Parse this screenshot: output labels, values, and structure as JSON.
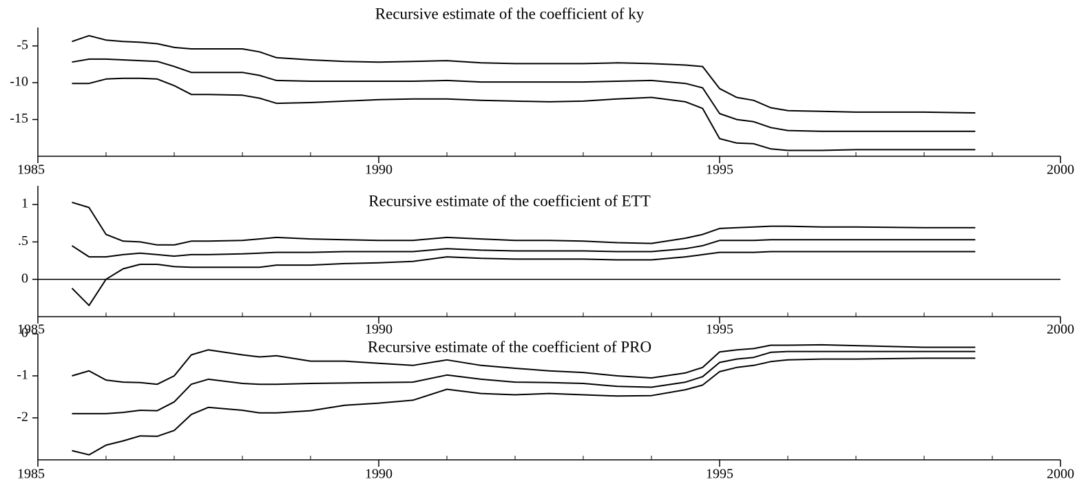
{
  "chart_data": [
    {
      "type": "line",
      "title": "Recursive estimate of the coefficient of ky",
      "x": [
        1985.5,
        1985.75,
        1986,
        1986.25,
        1986.5,
        1986.75,
        1987,
        1987.25,
        1987.5,
        1988,
        1988.25,
        1988.5,
        1989,
        1989.5,
        1990,
        1990.5,
        1991,
        1991.5,
        1992,
        1992.5,
        1993,
        1993.5,
        1994,
        1994.5,
        1994.75,
        1995,
        1995.25,
        1995.5,
        1995.75,
        1996,
        1996.5,
        1997,
        1998,
        1998.75
      ],
      "series": [
        {
          "color": "#000000",
          "values": [
            -4.4,
            -3.6,
            -4.2,
            -4.4,
            -4.5,
            -4.7,
            -5.2,
            -5.4,
            -5.4,
            -5.4,
            -5.8,
            -6.6,
            -6.9,
            -7.1,
            -7.2,
            -7.1,
            -7.0,
            -7.3,
            -7.4,
            -7.4,
            -7.4,
            -7.3,
            -7.4,
            -7.6,
            -7.8,
            -10.8,
            -12,
            -12.4,
            -13.4,
            -13.8,
            -13.9,
            -14.0,
            -14.0,
            -14.1
          ]
        },
        {
          "color": "#000000",
          "values": [
            -7.2,
            -6.8,
            -6.8,
            -6.9,
            -7.0,
            -7.1,
            -7.8,
            -8.6,
            -8.6,
            -8.6,
            -9.0,
            -9.7,
            -9.8,
            -9.8,
            -9.8,
            -9.8,
            -9.7,
            -9.9,
            -9.9,
            -9.9,
            -9.9,
            -9.8,
            -9.7,
            -10.1,
            -10.7,
            -14.2,
            -15.0,
            -15.3,
            -16.1,
            -16.5,
            -16.6,
            -16.6,
            -16.6,
            -16.6
          ]
        },
        {
          "color": "#000000",
          "values": [
            -10.1,
            -10.1,
            -9.5,
            -9.4,
            -9.4,
            -9.5,
            -10.4,
            -11.6,
            -11.6,
            -11.7,
            -12.1,
            -12.8,
            -12.7,
            -12.5,
            -12.3,
            -12.2,
            -12.2,
            -12.4,
            -12.5,
            -12.6,
            -12.5,
            -12.2,
            -12.0,
            -12.6,
            -13.5,
            -17.6,
            -18.2,
            -18.3,
            -19.0,
            -19.2,
            -19.2,
            -19.1,
            -19.1,
            -19.1
          ]
        }
      ],
      "xlim": [
        1985,
        2000
      ],
      "xticks": [
        1985,
        1990,
        1995,
        2000
      ],
      "minor_xticks": [
        1986,
        1987,
        1988,
        1989,
        1991,
        1992,
        1993,
        1994,
        1996,
        1997,
        1998,
        1999
      ],
      "ylim": [
        -20,
        -2.5
      ],
      "yticks": [
        -5,
        -10,
        -15
      ],
      "zero_line": false
    },
    {
      "type": "line",
      "title": "Recursive estimate of the coefficient of ETT",
      "x": [
        1985.5,
        1985.75,
        1986,
        1986.25,
        1986.5,
        1986.75,
        1987,
        1987.25,
        1987.5,
        1988,
        1988.25,
        1988.5,
        1989,
        1989.5,
        1990,
        1990.5,
        1991,
        1991.5,
        1992,
        1992.5,
        1993,
        1993.5,
        1994,
        1994.5,
        1994.75,
        1995,
        1995.25,
        1995.5,
        1995.75,
        1996,
        1996.5,
        1997,
        1998,
        1998.75
      ],
      "series": [
        {
          "color": "#000000",
          "values": [
            1.03,
            0.96,
            0.6,
            0.51,
            0.5,
            0.46,
            0.46,
            0.51,
            0.51,
            0.52,
            0.54,
            0.56,
            0.54,
            0.53,
            0.52,
            0.52,
            0.56,
            0.54,
            0.52,
            0.52,
            0.51,
            0.49,
            0.48,
            0.55,
            0.6,
            0.68,
            0.69,
            0.7,
            0.71,
            0.71,
            0.7,
            0.7,
            0.69,
            0.69
          ]
        },
        {
          "color": "#000000",
          "values": [
            0.45,
            0.3,
            0.3,
            0.33,
            0.35,
            0.33,
            0.31,
            0.33,
            0.33,
            0.34,
            0.35,
            0.36,
            0.36,
            0.37,
            0.37,
            0.37,
            0.41,
            0.39,
            0.38,
            0.38,
            0.38,
            0.37,
            0.37,
            0.41,
            0.45,
            0.52,
            0.52,
            0.52,
            0.53,
            0.53,
            0.53,
            0.53,
            0.53,
            0.53
          ]
        },
        {
          "color": "#000000",
          "values": [
            -0.12,
            -0.35,
            0.0,
            0.14,
            0.2,
            0.2,
            0.17,
            0.16,
            0.16,
            0.16,
            0.16,
            0.19,
            0.19,
            0.21,
            0.22,
            0.24,
            0.3,
            0.28,
            0.27,
            0.27,
            0.27,
            0.26,
            0.26,
            0.3,
            0.33,
            0.36,
            0.36,
            0.36,
            0.37,
            0.37,
            0.37,
            0.37,
            0.37,
            0.37
          ]
        }
      ],
      "xlim": [
        1985,
        2000
      ],
      "xticks": [
        1985,
        1990,
        1995,
        2000
      ],
      "minor_xticks": [
        1986,
        1987,
        1988,
        1989,
        1991,
        1992,
        1993,
        1994,
        1996,
        1997,
        1998,
        1999
      ],
      "ylim": [
        -0.5,
        1.25
      ],
      "yticks": [
        1,
        {
          "value": 0.5,
          "label": ".5"
        },
        0
      ],
      "zero_line": true
    },
    {
      "type": "line",
      "title": "Recursive estimate of the coefficient of PRO",
      "x": [
        1985.5,
        1985.75,
        1986,
        1986.25,
        1986.5,
        1986.75,
        1987,
        1987.25,
        1987.5,
        1988,
        1988.25,
        1988.5,
        1989,
        1989.5,
        1990,
        1990.5,
        1991,
        1991.5,
        1992,
        1992.5,
        1993,
        1993.5,
        1994,
        1994.5,
        1994.75,
        1995,
        1995.25,
        1995.5,
        1995.75,
        1996,
        1996.5,
        1997,
        1998,
        1998.75
      ],
      "series": [
        {
          "color": "#000000",
          "values": [
            -1.0,
            -0.88,
            -1.1,
            -1.15,
            -1.16,
            -1.2,
            -1.0,
            -0.5,
            -0.38,
            -0.5,
            -0.55,
            -0.52,
            -0.65,
            -0.65,
            -0.7,
            -0.75,
            -0.62,
            -0.75,
            -0.82,
            -0.88,
            -0.92,
            -1.0,
            -1.05,
            -0.93,
            -0.8,
            -0.43,
            -0.38,
            -0.35,
            -0.27,
            -0.27,
            -0.26,
            -0.28,
            -0.32,
            -0.32
          ]
        },
        {
          "color": "#000000",
          "values": [
            -1.9,
            -1.9,
            -1.9,
            -1.87,
            -1.82,
            -1.83,
            -1.62,
            -1.2,
            -1.08,
            -1.18,
            -1.2,
            -1.2,
            -1.18,
            -1.17,
            -1.16,
            -1.15,
            -0.98,
            -1.08,
            -1.15,
            -1.16,
            -1.18,
            -1.25,
            -1.27,
            -1.15,
            -1.02,
            -0.68,
            -0.6,
            -0.56,
            -0.44,
            -0.42,
            -0.42,
            -0.42,
            -0.42,
            -0.42
          ]
        },
        {
          "color": "#000000",
          "values": [
            -2.78,
            -2.88,
            -2.65,
            -2.55,
            -2.43,
            -2.44,
            -2.3,
            -1.92,
            -1.75,
            -1.82,
            -1.88,
            -1.88,
            -1.83,
            -1.7,
            -1.65,
            -1.58,
            -1.32,
            -1.42,
            -1.45,
            -1.42,
            -1.45,
            -1.48,
            -1.47,
            -1.33,
            -1.22,
            -0.9,
            -0.8,
            -0.75,
            -0.66,
            -0.62,
            -0.6,
            -0.6,
            -0.58,
            -0.58
          ]
        }
      ],
      "xlim": [
        1985,
        2000
      ],
      "xticks": [
        1985,
        1990,
        1995,
        2000
      ],
      "minor_xticks": [
        1986,
        1987,
        1988,
        1989,
        1991,
        1992,
        1993,
        1994,
        1996,
        1997,
        1998,
        1999
      ],
      "ylim": [
        -3,
        0
      ],
      "yticks": [
        0,
        -1,
        -2
      ],
      "zero_line": false
    }
  ]
}
